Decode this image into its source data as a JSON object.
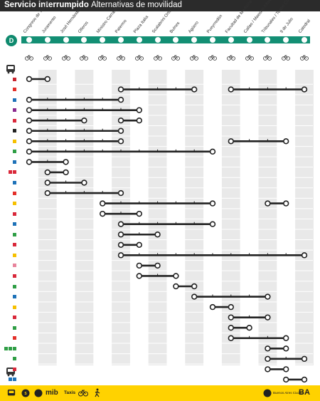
{
  "header": {
    "title": "Servicio interrumpido",
    "subtitle": "Alternativas de movilidad"
  },
  "line": {
    "label": "D",
    "color": "#138f74"
  },
  "stations": [
    "Congreso de Tucumán",
    "Juramento",
    "José Hernández",
    "Olleros",
    "Ministro Carranza / Miguel Abuelo",
    "Palermo",
    "Plaza Italia",
    "Scalabrini Ortiz",
    "Bulnes",
    "Agüero",
    "Pueyrredón",
    "Facultad de Medicina",
    "Callao / Maestro Alfredo Bravo",
    "Tribunales / Teatro Colón",
    "9 de Julio",
    "Catedral"
  ],
  "bus_lines": [
    {
      "lines": [
        "15"
      ],
      "from": 0,
      "to": 1,
      "color": "#c8242e"
    },
    {
      "lines": [
        "29"
      ],
      "from": 5,
      "to": 9,
      "color": "#e4302a"
    },
    {
      "lines": [
        "29"
      ],
      "from": 11,
      "to": 15,
      "color": "#e4302a"
    },
    {
      "lines": [
        "34"
      ],
      "from": 0,
      "to": 5,
      "color": "#1e72b8"
    },
    {
      "lines": [
        "39"
      ],
      "from": 0,
      "to": 6,
      "color": "#8b2a8f"
    },
    {
      "lines": [
        "41"
      ],
      "from": 0,
      "to": 3,
      "color": "#d9283a"
    },
    {
      "lines": [
        "41"
      ],
      "from": 5,
      "to": 6,
      "color": "#d9283a"
    },
    {
      "lines": [
        "55"
      ],
      "from": 0,
      "to": 5,
      "color": "#222222"
    },
    {
      "lines": [
        "57"
      ],
      "from": 0,
      "to": 5,
      "color": "#f6c000"
    },
    {
      "lines": [
        "57"
      ],
      "from": 11,
      "to": 14,
      "color": "#f6c000"
    },
    {
      "lines": [
        "59"
      ],
      "from": 0,
      "to": 10,
      "color": "#2f9e45"
    },
    {
      "lines": [
        "60"
      ],
      "from": 0,
      "to": 2,
      "color": "#1e72b8"
    },
    {
      "lines": [
        "64",
        "65"
      ],
      "from": 1,
      "to": 2,
      "color": "#d9283a"
    },
    {
      "lines": [
        "67"
      ],
      "from": 1,
      "to": 3,
      "color": "#1e72b8"
    },
    {
      "lines": [
        "68"
      ],
      "from": 1,
      "to": 5,
      "color": "#e4302a"
    },
    {
      "lines": [
        "93"
      ],
      "from": 4,
      "to": 10,
      "color": "#f6c000"
    },
    {
      "lines": [
        "93"
      ],
      "from": 13,
      "to": 14,
      "color": "#f6c000"
    },
    {
      "lines": [
        "95"
      ],
      "from": 4,
      "to": 6,
      "color": "#d9283a"
    },
    {
      "lines": [
        "111"
      ],
      "from": 5,
      "to": 10,
      "color": "#1e72b8"
    },
    {
      "lines": [
        "118"
      ],
      "from": 5,
      "to": 7,
      "color": "#2f9e45"
    },
    {
      "lines": [
        "128"
      ],
      "from": 5,
      "to": 6,
      "color": "#d9283a"
    },
    {
      "lines": [
        "130"
      ],
      "from": 5,
      "to": 15,
      "color": "#f6c000"
    },
    {
      "lines": [
        "141"
      ],
      "from": 6,
      "to": 7,
      "color": "#e8849c"
    },
    {
      "lines": [
        "150"
      ],
      "from": 6,
      "to": 8,
      "color": "#d9283a"
    },
    {
      "lines": [
        "152"
      ],
      "from": 8,
      "to": 9,
      "color": "#2f9e45"
    },
    {
      "lines": [
        "160"
      ],
      "from": 9,
      "to": 13,
      "color": "#1e72b8"
    },
    {
      "lines": [
        "161"
      ],
      "from": 10,
      "to": 11,
      "color": "#f6c000"
    },
    {
      "lines": [
        "168"
      ],
      "from": 11,
      "to": 13,
      "color": "#d9283a"
    },
    {
      "lines": [
        "188"
      ],
      "from": 11,
      "to": 12,
      "color": "#2f9e45"
    },
    {
      "lines": [
        "194"
      ],
      "from": 11,
      "to": 14,
      "color": "#e4302a"
    },
    {
      "lines": [
        "5",
        "7",
        "12"
      ],
      "from": 13,
      "to": 14,
      "color": "#2f9e45"
    },
    {
      "lines": [
        "6"
      ],
      "from": 13,
      "to": 15,
      "color": "#2f9e45"
    },
    {
      "lines": [
        "17"
      ],
      "from": 13,
      "to": 14,
      "color": "#d9283a"
    },
    {
      "lines": [
        "56",
        "75"
      ],
      "from": 14,
      "to": 15,
      "color": "#1e72b8"
    }
  ],
  "footer": {
    "items": [
      "Colectivo",
      "Subte",
      "Ecobici",
      "Taxis",
      "Caminando"
    ],
    "logo_left": "mib",
    "logo_right": "BA",
    "right_text": "Buenos Aires Ciudad"
  },
  "colors": {
    "header_bg": "#2b2b2b",
    "accent": "#ffd200",
    "grid": "#e9e9e9",
    "route": "#222222"
  }
}
